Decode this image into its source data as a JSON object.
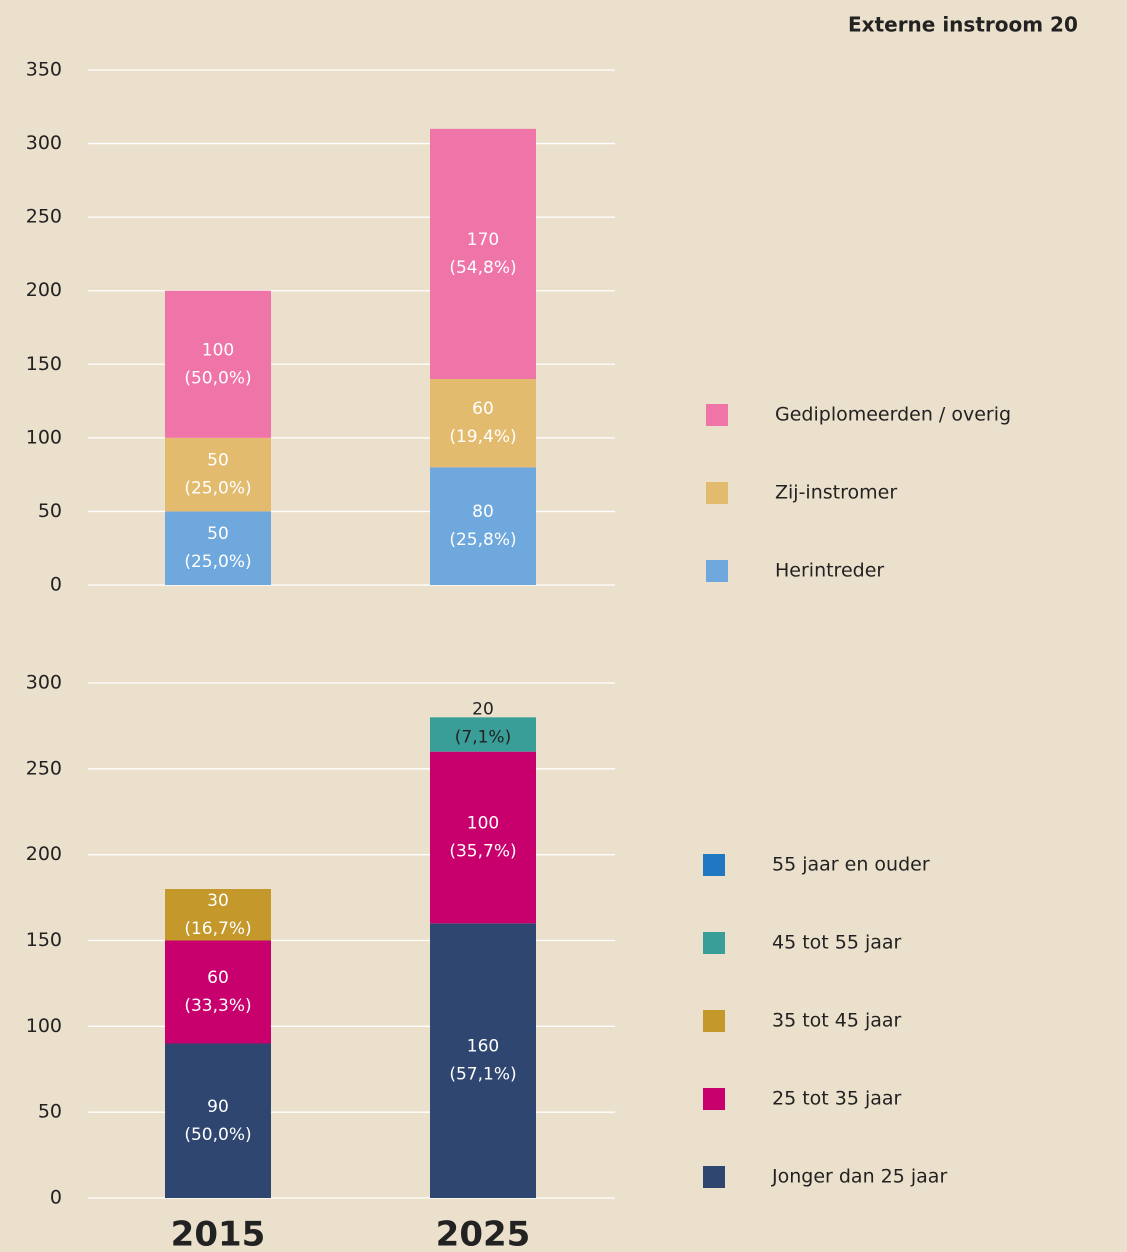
{
  "chart_data": [
    {
      "type": "stacked_bar",
      "title": "Externe instroom 20",
      "categories": [
        null,
        null
      ],
      "ylim": [
        0,
        350
      ],
      "yticks": [
        0,
        50,
        100,
        150,
        200,
        250,
        300,
        350
      ],
      "grid": true,
      "series": [
        {
          "name": "Herintreder",
          "color": "#6fa8dc",
          "label_color": "#ffffff",
          "values": [
            50,
            80
          ],
          "value_labels": [
            "50 (25,0%)",
            "80 (25,8%)"
          ]
        },
        {
          "name": "Zij-instromer",
          "color": "#e3bb6f",
          "label_color": "#ffffff",
          "values": [
            50,
            60
          ],
          "value_labels": [
            "50 (25,0%)",
            "60 (19,4%)"
          ]
        },
        {
          "name": "Gediplomeerden / overig",
          "color": "#ef74a8",
          "label_color": "#ffffff",
          "values": [
            100,
            170
          ],
          "value_labels": [
            "100 (50,0%)",
            "170 (54,8%)"
          ]
        }
      ]
    },
    {
      "type": "stacked_bar",
      "categories": [
        "2015",
        "2025"
      ],
      "ylim": [
        0,
        300
      ],
      "yticks": [
        0,
        50,
        100,
        150,
        200,
        250,
        300
      ],
      "grid": true,
      "series": [
        {
          "name": "Jonger dan 25 jaar",
          "color": "#2e4670",
          "label_color": "#ffffff",
          "values": [
            90,
            160
          ],
          "value_labels": [
            "90 (50,0%)",
            "160 (57,1%)"
          ]
        },
        {
          "name": "25 tot 35 jaar",
          "color": "#c8006e",
          "label_color": "#ffffff",
          "values": [
            60,
            100
          ],
          "value_labels": [
            "60 (33,3%)",
            "100 (35,7%)"
          ]
        },
        {
          "name": "35 tot 45 jaar",
          "color": "#c4982a",
          "label_color": "#ffffff",
          "values": [
            30,
            null
          ],
          "value_labels": [
            "30 (16,7%)",
            null
          ]
        },
        {
          "name": "45 tot 55 jaar",
          "color": "#3a9e98",
          "label_color": "#222222",
          "values": [
            null,
            20
          ],
          "value_labels": [
            null,
            "20 (7,1%)"
          ]
        },
        {
          "name": "55 jaar en ouder",
          "color": "#1f78c1",
          "label_color": "#ffffff",
          "values": [
            null,
            null
          ],
          "value_labels": [
            null,
            null
          ]
        }
      ]
    }
  ]
}
